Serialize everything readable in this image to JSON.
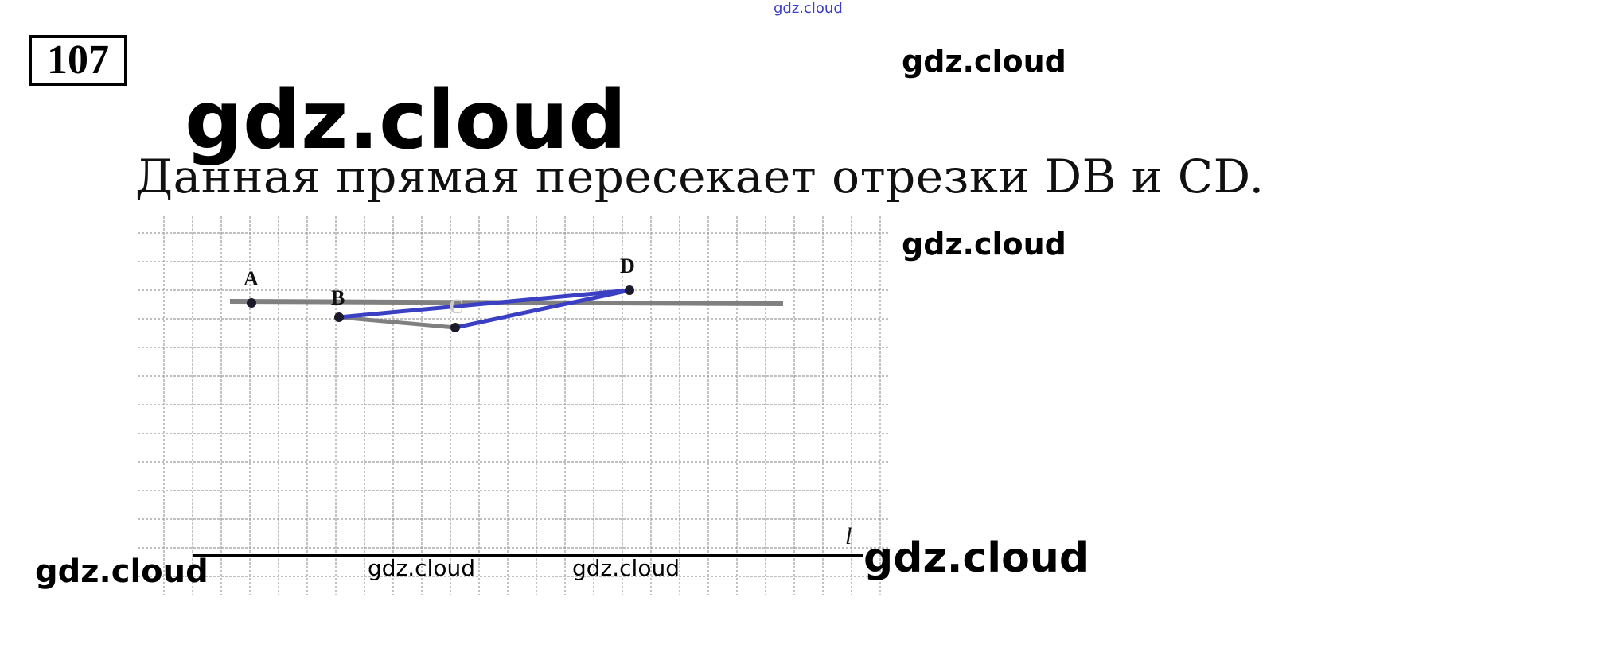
{
  "problem_number": "107",
  "watermark": "gdz.cloud",
  "answer_text": "Данная прямая пересекает отрезки DB и CD.",
  "figure": {
    "points": [
      "A",
      "B",
      "C",
      "D"
    ],
    "line_label": "l",
    "colors": {
      "segment_blue": "#3a3fc4",
      "line_gray": "#808080",
      "grid": "#9a9a9a"
    }
  }
}
